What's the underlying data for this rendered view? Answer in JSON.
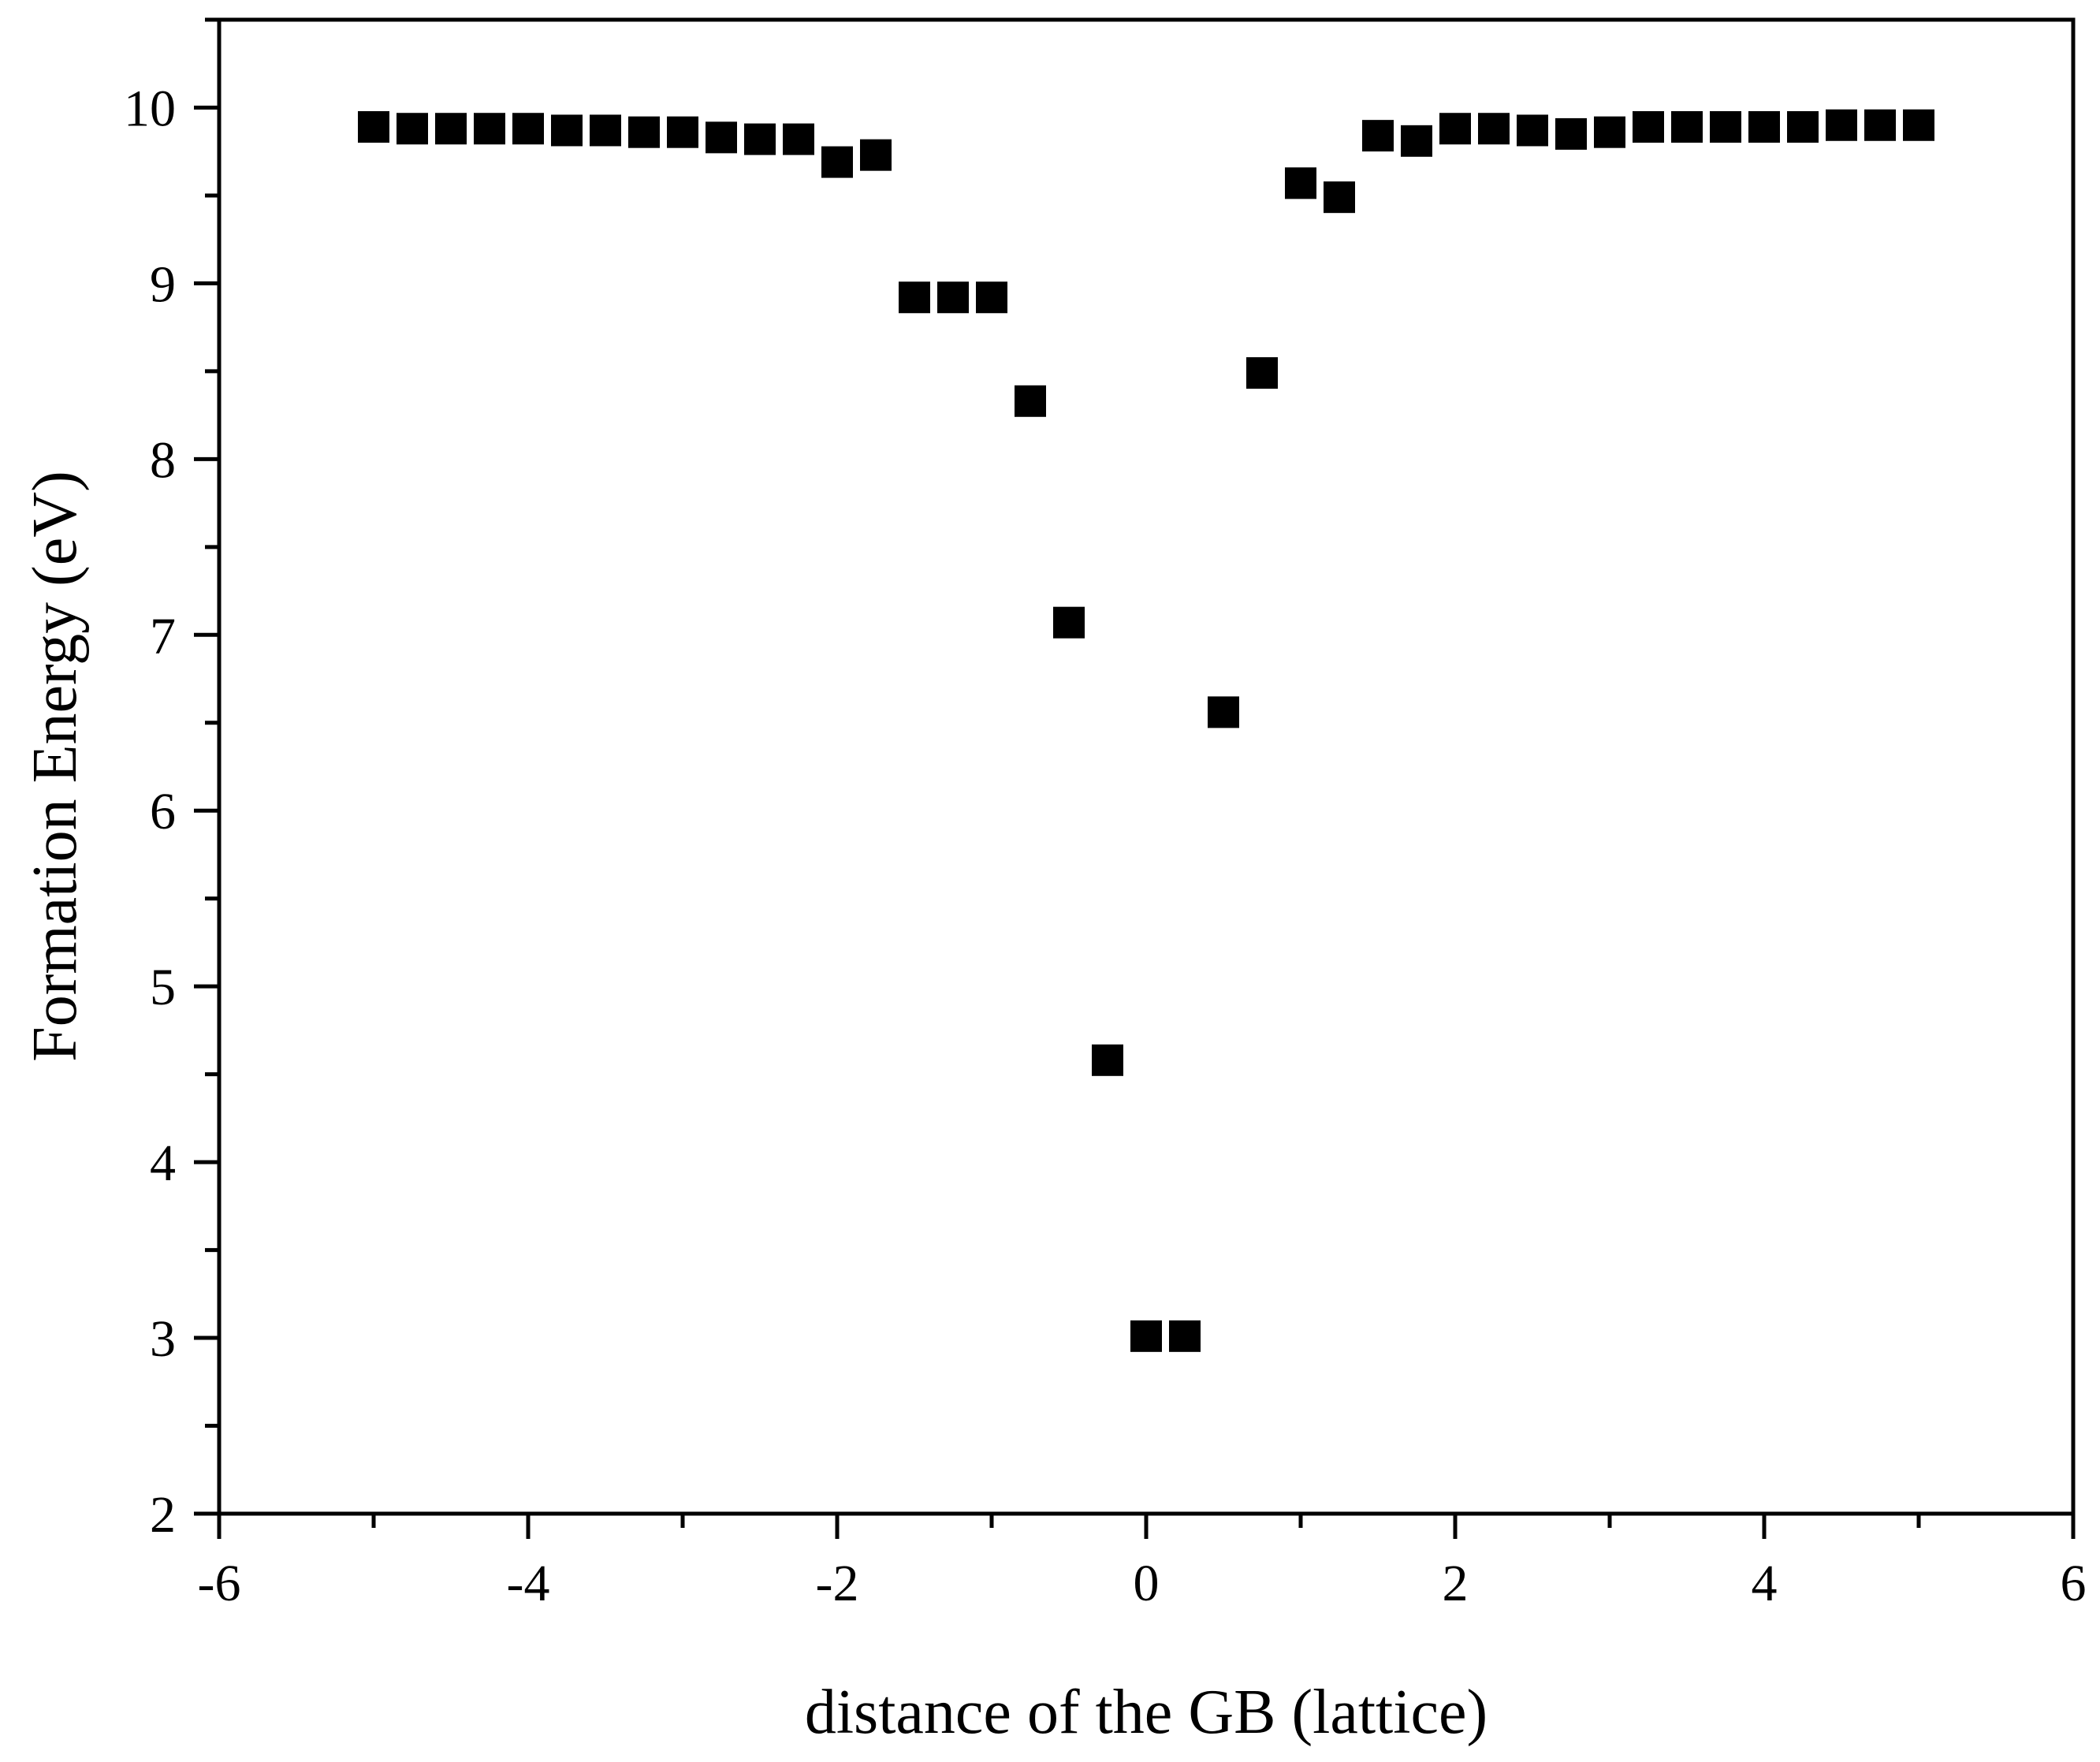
{
  "chart_data": {
    "type": "scatter",
    "title": "",
    "xlabel": "distance of the GB (lattice)",
    "ylabel": "Formation Energy (eV)",
    "xlim": [
      -6,
      6
    ],
    "ylim": [
      2,
      10.5
    ],
    "x_ticks": [
      -6,
      -4,
      -2,
      0,
      2,
      4,
      6
    ],
    "x_tick_labels": [
      "-6",
      "-4",
      "-2",
      "0",
      "2",
      "4",
      "6"
    ],
    "y_ticks": [
      2,
      3,
      4,
      5,
      6,
      7,
      8,
      9,
      10
    ],
    "y_tick_labels": [
      "2",
      "3",
      "4",
      "5",
      "6",
      "7",
      "8",
      "9",
      "10"
    ],
    "grid": false,
    "legend": "none",
    "marker": "square",
    "marker_color": "#000000",
    "series": [
      {
        "x": [
          -5.0,
          -4.75,
          -4.5,
          -4.25,
          -4.0,
          -3.75,
          -3.5,
          -3.25,
          -3.0,
          -2.75,
          -2.5,
          -2.25,
          -2.0,
          -1.75,
          -1.5,
          -1.25,
          -1.0,
          -0.75,
          -0.5,
          -0.25,
          0.0,
          0.25,
          0.5,
          0.75,
          1.0,
          1.25,
          1.5,
          1.75,
          2.0,
          2.25,
          2.5,
          2.75,
          3.0,
          3.25,
          3.5,
          3.75,
          4.0,
          4.25,
          4.5,
          4.75,
          5.0
        ],
        "y": [
          9.89,
          9.88,
          9.88,
          9.88,
          9.88,
          9.87,
          9.87,
          9.86,
          9.86,
          9.83,
          9.82,
          9.82,
          9.69,
          9.73,
          8.92,
          8.92,
          8.92,
          8.33,
          7.07,
          4.58,
          3.01,
          3.01,
          6.56,
          8.49,
          9.57,
          9.49,
          9.84,
          9.81,
          9.88,
          9.88,
          9.87,
          9.85,
          9.86,
          9.89,
          9.89,
          9.89,
          9.89,
          9.89,
          9.9,
          9.9,
          9.9
        ]
      }
    ]
  }
}
